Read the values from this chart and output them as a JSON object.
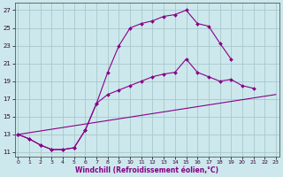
{
  "xlabel": "Windchill (Refroidissement éolien,°C)",
  "background_color": "#cce8ec",
  "grid_color": "#a8c8cc",
  "line_color": "#880088",
  "x_ticks": [
    0,
    1,
    2,
    3,
    4,
    5,
    6,
    7,
    8,
    9,
    10,
    11,
    12,
    13,
    14,
    15,
    16,
    17,
    18,
    19,
    20,
    21,
    22,
    23
  ],
  "y_ticks": [
    11,
    13,
    15,
    17,
    19,
    21,
    23,
    25,
    27
  ],
  "xlim": [
    -0.3,
    23.3
  ],
  "ylim": [
    10.5,
    27.8
  ],
  "curve1_x": [
    0,
    1,
    2,
    3,
    4,
    5,
    6,
    7,
    8,
    9,
    10,
    11,
    12,
    13,
    14,
    15,
    16,
    17,
    18,
    19
  ],
  "curve1_y": [
    13.0,
    12.5,
    11.8,
    11.3,
    11.3,
    11.5,
    13.5,
    16.5,
    20.0,
    23.0,
    25.0,
    25.5,
    25.8,
    26.3,
    26.5,
    27.0,
    25.5,
    25.2,
    23.3,
    21.5
  ],
  "curve2_x": [
    0,
    1,
    2,
    3,
    4,
    5,
    6,
    7,
    8,
    9,
    10,
    11,
    12,
    13,
    14,
    15,
    16,
    17,
    18,
    19,
    20,
    21
  ],
  "curve2_y": [
    13.0,
    12.5,
    11.8,
    11.3,
    11.3,
    11.5,
    13.5,
    16.5,
    17.5,
    18.0,
    18.5,
    19.0,
    19.5,
    19.8,
    20.0,
    21.5,
    20.0,
    19.5,
    19.0,
    19.2,
    18.5,
    18.2
  ],
  "curve3_x": [
    0,
    23
  ],
  "curve3_y": [
    13.0,
    17.5
  ]
}
